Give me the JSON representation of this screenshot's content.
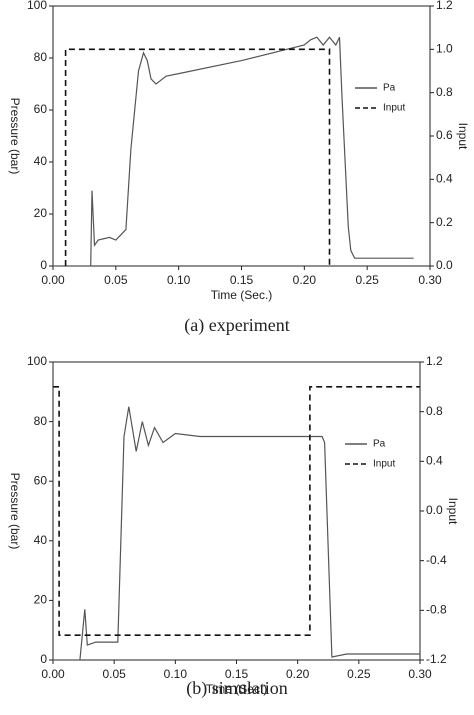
{
  "chart_data": [
    {
      "type": "line",
      "caption": "(a) experiment",
      "xlabel": "Time (Sec.)",
      "ylabel": "Pressure (bar)",
      "y2label": "Input",
      "xlim": [
        0,
        0.3
      ],
      "xticks": [
        {
          "value": 0,
          "label": "0.00"
        },
        0.05,
        {
          "value": 0.1,
          "label": "0.10"
        },
        0.15,
        {
          "value": 0.2,
          "label": "0.20"
        },
        0.25,
        {
          "value": 0.3,
          "label": "0.30"
        }
      ],
      "ylim": [
        0,
        100
      ],
      "yticks": [
        0,
        20,
        40,
        60,
        80,
        100
      ],
      "y2lim": [
        0,
        1.2
      ],
      "y2ticks": [
        {
          "value": 0,
          "label": "0.0"
        },
        0.2,
        0.4,
        0.6,
        0.8,
        {
          "value": 1,
          "label": "1.0"
        },
        1.2
      ],
      "legend": "upper right",
      "series": [
        {
          "name": "Pa",
          "color": "#555555",
          "dash": false,
          "x": [
            0,
            0.03,
            0.031,
            0.033,
            0.036,
            0.045,
            0.05,
            0.058,
            0.062,
            0.068,
            0.072,
            0.075,
            0.078,
            0.082,
            0.09,
            0.1,
            0.15,
            0.2,
            0.205,
            0.21,
            0.215,
            0.22,
            0.225,
            0.228,
            0.23,
            0.232,
            0.235,
            0.237,
            0.24,
            0.26,
            0.287
          ],
          "values": [
            0,
            0,
            29,
            8,
            10,
            11,
            10,
            14,
            45,
            75,
            82,
            79,
            72,
            70,
            73,
            74,
            79,
            85,
            87,
            88,
            85,
            88,
            85,
            88,
            65,
            45,
            15,
            6,
            3,
            3,
            3
          ]
        },
        {
          "name": "Input",
          "color": "#111111",
          "dash": true,
          "axis": "y2",
          "x": [
            0.01,
            0.01,
            0.22,
            0.22
          ],
          "values": [
            0,
            1,
            1,
            0
          ]
        }
      ]
    },
    {
      "type": "line",
      "caption": "(b) simulation",
      "xlabel": "Time (Sec.)",
      "ylabel": "Pressure (bar)",
      "y2label": "Input",
      "xlim": [
        0,
        0.3
      ],
      "xticks": [
        {
          "value": 0,
          "label": "0.00"
        },
        0.05,
        {
          "value": 0.1,
          "label": "0.10"
        },
        0.15,
        {
          "value": 0.2,
          "label": "0.20"
        },
        0.25,
        {
          "value": 0.3,
          "label": "0.30"
        }
      ],
      "ylim": [
        0,
        100
      ],
      "yticks": [
        0,
        20,
        40,
        60,
        80,
        100
      ],
      "y2lim": [
        -1.2,
        1.2
      ],
      "y2ticks": [
        -1.2,
        -0.8,
        -0.4,
        {
          "value": 0,
          "label": "0.0"
        },
        0.4,
        0.8,
        1.2
      ],
      "legend": "upper right",
      "series": [
        {
          "name": "Pa",
          "color": "#555555",
          "dash": false,
          "x": [
            0,
            0.022,
            0.026,
            0.028,
            0.035,
            0.053,
            0.058,
            0.062,
            0.068,
            0.073,
            0.078,
            0.083,
            0.09,
            0.1,
            0.12,
            0.22,
            0.222,
            0.228,
            0.24,
            0.3
          ],
          "values": [
            0,
            0,
            17,
            5,
            6,
            6,
            75,
            85,
            70,
            80,
            72,
            78,
            73,
            76,
            75,
            75,
            73,
            1,
            2,
            2
          ]
        },
        {
          "name": "Input",
          "color": "#111111",
          "dash": true,
          "axis": "y2",
          "x": [
            0,
            0.005,
            0.005,
            0.21,
            0.21,
            0.3
          ],
          "values": [
            1,
            1,
            -1,
            -1,
            1,
            1
          ]
        }
      ]
    }
  ]
}
